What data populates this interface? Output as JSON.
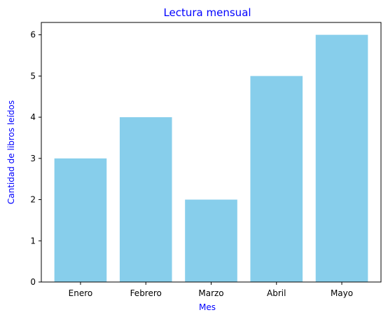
{
  "chart_data": {
    "type": "bar",
    "title": "Lectura mensual",
    "xlabel": "Mes",
    "ylabel": "Cantidad de libros leídos",
    "categories": [
      "Enero",
      "Febrero",
      "Marzo",
      "Abril",
      "Mayo"
    ],
    "values": [
      3,
      4,
      2,
      5,
      6
    ],
    "ylim": [
      0,
      6.3
    ],
    "yticks": [
      0,
      1,
      2,
      3,
      4,
      5,
      6
    ],
    "grid": false,
    "bar_color": "#87ceeb",
    "label_color": "#0000ff",
    "axis_color": "#000000"
  }
}
